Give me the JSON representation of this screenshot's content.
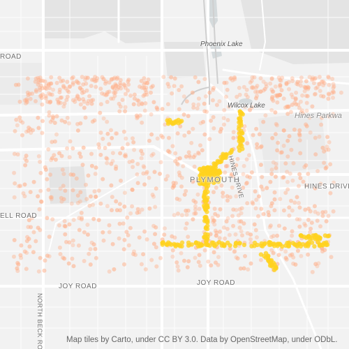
{
  "map": {
    "labels": {
      "phoenix_lake": "Phoenix Lake",
      "wilcox_lake": "Wilcox Lake",
      "hines_parkway": "Hines Parkwa",
      "hines_drive_v": "HINES DRIVE",
      "hines_drive_h": "HINES DRIVE",
      "plymouth": "PLYMOUTH",
      "road_top_left": "ROAD",
      "ell_road": "ELL ROAD",
      "joy_road_left": "JOY ROAD",
      "joy_road_right": "JOY ROAD",
      "north_beck_road": "NORTH BECK RO"
    },
    "attribution": "Map tiles by Carto, under CC BY 3.0. Data by OpenStreetMap, under ODbL.",
    "colors": {
      "background": "#f2f2f2",
      "park": "#e4e4e4",
      "water": "#d4dadc",
      "road": "#ffffff",
      "heat_low": "#ffb08a",
      "heat_high": "#ffd21f"
    }
  }
}
